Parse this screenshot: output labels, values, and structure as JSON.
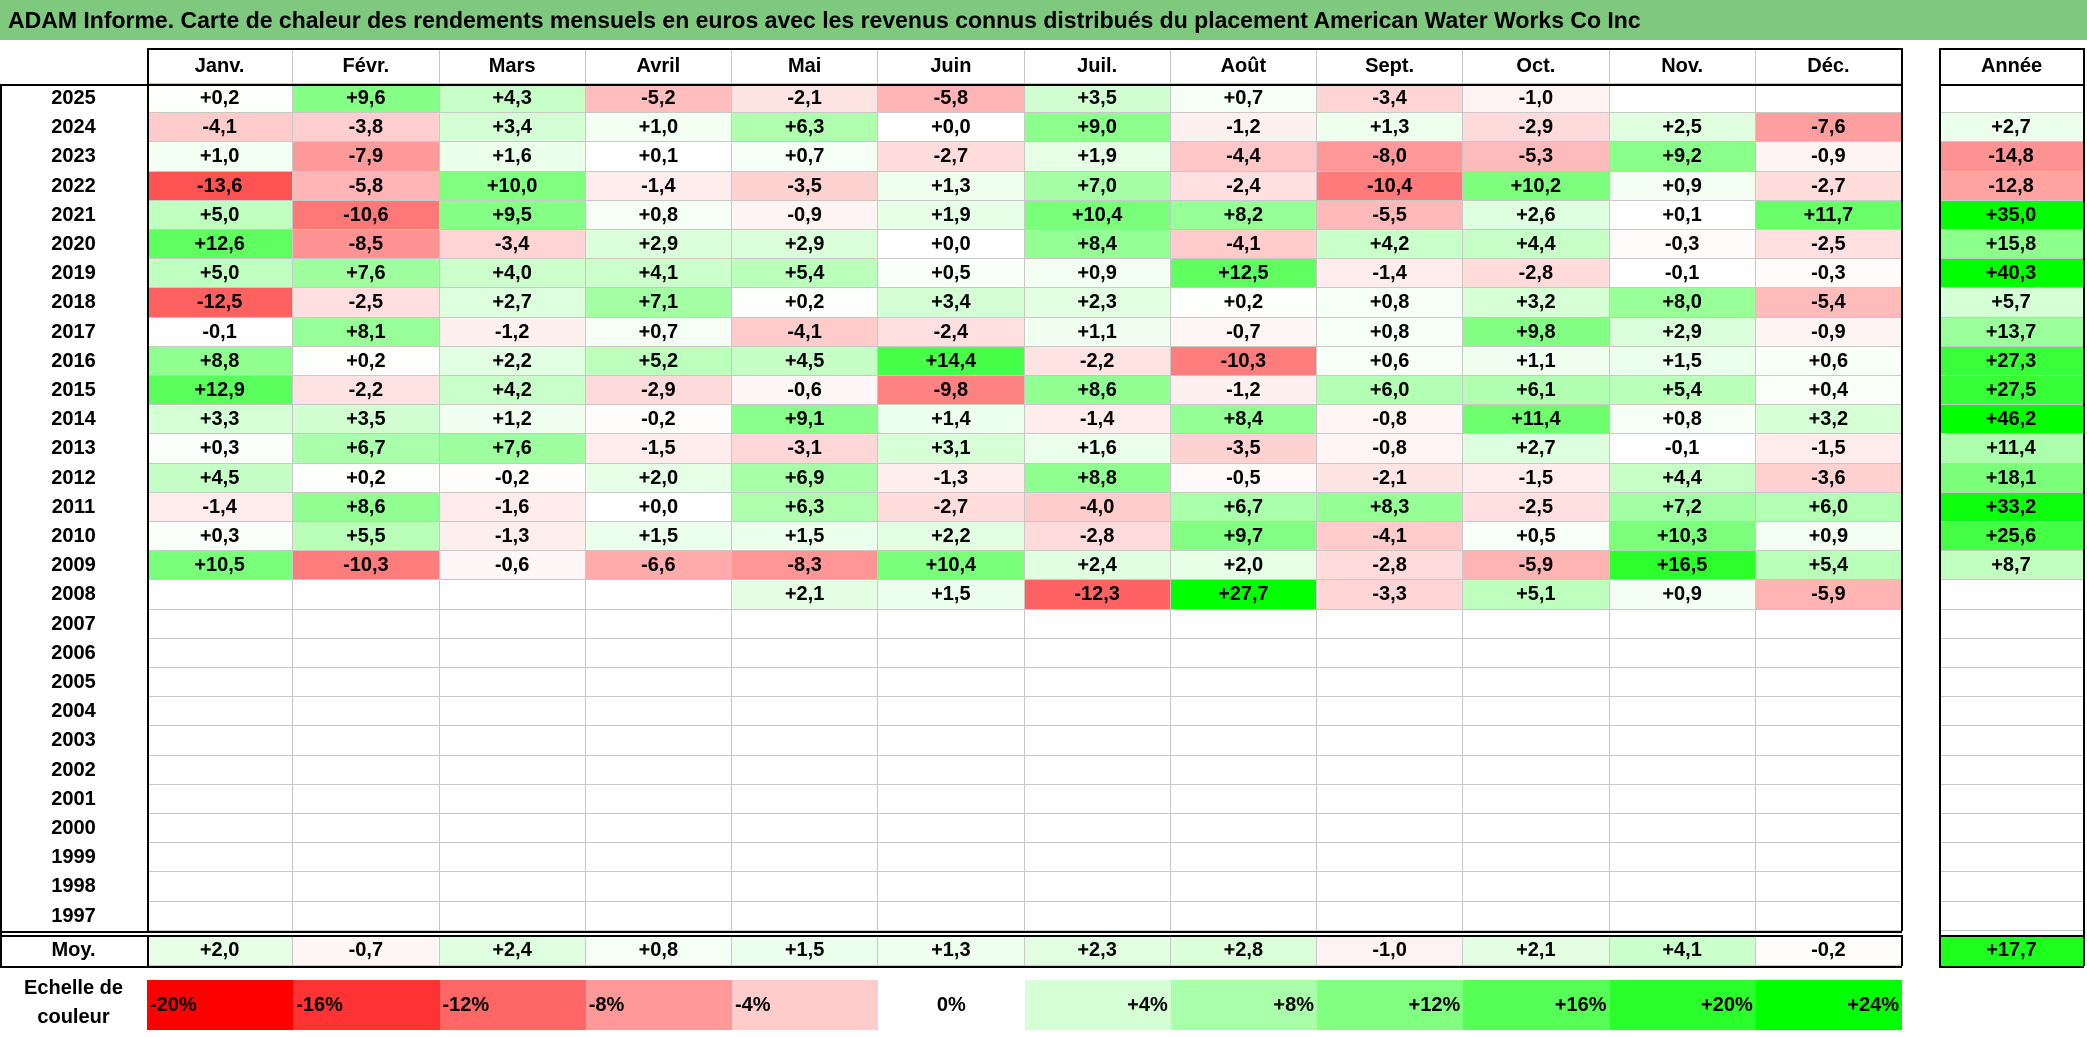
{
  "title": "ADAM Informe. Carte de chaleur des rendements mensuels en euros avec les revenus connus distribués du placement American Water Works Co Inc",
  "chart_data": {
    "type": "heatmap",
    "title": "ADAM Informe. Carte de chaleur des rendements mensuels en euros avec les revenus connus distribués du placement American Water Works Co Inc",
    "months": [
      "Janv.",
      "Févr.",
      "Mars",
      "Avril",
      "Mai",
      "Juin",
      "Juil.",
      "Août",
      "Sept.",
      "Oct.",
      "Nov.",
      "Déc."
    ],
    "year_header": "Année",
    "avg_label": "Moy.",
    "rows": [
      {
        "year": "2025",
        "values": [
          "+0,2",
          "+9,6",
          "+4,3",
          "-5,2",
          "-2,1",
          "-5,8",
          "+3,5",
          "+0,7",
          "-3,4",
          "-1,0",
          "",
          ""
        ],
        "annual": ""
      },
      {
        "year": "2024",
        "values": [
          "-4,1",
          "-3,8",
          "+3,4",
          "+1,0",
          "+6,3",
          "+0,0",
          "+9,0",
          "-1,2",
          "+1,3",
          "-2,9",
          "+2,5",
          "-7,6"
        ],
        "annual": "+2,7"
      },
      {
        "year": "2023",
        "values": [
          "+1,0",
          "-7,9",
          "+1,6",
          "+0,1",
          "+0,7",
          "-2,7",
          "+1,9",
          "-4,4",
          "-8,0",
          "-5,3",
          "+9,2",
          "-0,9"
        ],
        "annual": "-14,8"
      },
      {
        "year": "2022",
        "values": [
          "-13,6",
          "-5,8",
          "+10,0",
          "-1,4",
          "-3,5",
          "+1,3",
          "+7,0",
          "-2,4",
          "-10,4",
          "+10,2",
          "+0,9",
          "-2,7"
        ],
        "annual": "-12,8"
      },
      {
        "year": "2021",
        "values": [
          "+5,0",
          "-10,6",
          "+9,5",
          "+0,8",
          "-0,9",
          "+1,9",
          "+10,4",
          "+8,2",
          "-5,5",
          "+2,6",
          "+0,1",
          "+11,7"
        ],
        "annual": "+35,0"
      },
      {
        "year": "2020",
        "values": [
          "+12,6",
          "-8,5",
          "-3,4",
          "+2,9",
          "+2,9",
          "+0,0",
          "+8,4",
          "-4,1",
          "+4,2",
          "+4,4",
          "-0,3",
          "-2,5"
        ],
        "annual": "+15,8"
      },
      {
        "year": "2019",
        "values": [
          "+5,0",
          "+7,6",
          "+4,0",
          "+4,1",
          "+5,4",
          "+0,5",
          "+0,9",
          "+12,5",
          "-1,4",
          "-2,8",
          "-0,1",
          "-0,3"
        ],
        "annual": "+40,3"
      },
      {
        "year": "2018",
        "values": [
          "-12,5",
          "-2,5",
          "+2,7",
          "+7,1",
          "+0,2",
          "+3,4",
          "+2,3",
          "+0,2",
          "+0,8",
          "+3,2",
          "+8,0",
          "-5,4"
        ],
        "annual": "+5,7"
      },
      {
        "year": "2017",
        "values": [
          "-0,1",
          "+8,1",
          "-1,2",
          "+0,7",
          "-4,1",
          "-2,4",
          "+1,1",
          "-0,7",
          "+0,8",
          "+9,8",
          "+2,9",
          "-0,9"
        ],
        "annual": "+13,7"
      },
      {
        "year": "2016",
        "values": [
          "+8,8",
          "+0,2",
          "+2,2",
          "+5,2",
          "+4,5",
          "+14,4",
          "-2,2",
          "-10,3",
          "+0,6",
          "+1,1",
          "+1,5",
          "+0,6"
        ],
        "annual": "+27,3"
      },
      {
        "year": "2015",
        "values": [
          "+12,9",
          "-2,2",
          "+4,2",
          "-2,9",
          "-0,6",
          "-9,8",
          "+8,6",
          "-1,2",
          "+6,0",
          "+6,1",
          "+5,4",
          "+0,4"
        ],
        "annual": "+27,5"
      },
      {
        "year": "2014",
        "values": [
          "+3,3",
          "+3,5",
          "+1,2",
          "-0,2",
          "+9,1",
          "+1,4",
          "-1,4",
          "+8,4",
          "-0,8",
          "+11,4",
          "+0,8",
          "+3,2"
        ],
        "annual": "+46,2"
      },
      {
        "year": "2013",
        "values": [
          "+0,3",
          "+6,7",
          "+7,6",
          "-1,5",
          "-3,1",
          "+3,1",
          "+1,6",
          "-3,5",
          "-0,8",
          "+2,7",
          "-0,1",
          "-1,5"
        ],
        "annual": "+11,4"
      },
      {
        "year": "2012",
        "values": [
          "+4,5",
          "+0,2",
          "-0,2",
          "+2,0",
          "+6,9",
          "-1,3",
          "+8,8",
          "-0,5",
          "-2,1",
          "-1,5",
          "+4,4",
          "-3,6"
        ],
        "annual": "+18,1"
      },
      {
        "year": "2011",
        "values": [
          "-1,4",
          "+8,6",
          "-1,6",
          "+0,0",
          "+6,3",
          "-2,7",
          "-4,0",
          "+6,7",
          "+8,3",
          "-2,5",
          "+7,2",
          "+6,0"
        ],
        "annual": "+33,2"
      },
      {
        "year": "2010",
        "values": [
          "+0,3",
          "+5,5",
          "-1,3",
          "+1,5",
          "+1,5",
          "+2,2",
          "-2,8",
          "+9,7",
          "-4,1",
          "+0,5",
          "+10,3",
          "+0,9"
        ],
        "annual": "+25,6"
      },
      {
        "year": "2009",
        "values": [
          "+10,5",
          "-10,3",
          "-0,6",
          "-6,6",
          "-8,3",
          "+10,4",
          "+2,4",
          "+2,0",
          "-2,8",
          "-5,9",
          "+16,5",
          "+5,4"
        ],
        "annual": "+8,7"
      },
      {
        "year": "2008",
        "values": [
          "",
          "",
          "",
          "",
          "+2,1",
          "+1,5",
          "-12,3",
          "+27,7",
          "-3,3",
          "+5,1",
          "+0,9",
          "-5,9"
        ],
        "annual": ""
      },
      {
        "year": "2007",
        "values": [
          "",
          "",
          "",
          "",
          "",
          "",
          "",
          "",
          "",
          "",
          "",
          ""
        ],
        "annual": ""
      },
      {
        "year": "2006",
        "values": [
          "",
          "",
          "",
          "",
          "",
          "",
          "",
          "",
          "",
          "",
          "",
          ""
        ],
        "annual": ""
      },
      {
        "year": "2005",
        "values": [
          "",
          "",
          "",
          "",
          "",
          "",
          "",
          "",
          "",
          "",
          "",
          ""
        ],
        "annual": ""
      },
      {
        "year": "2004",
        "values": [
          "",
          "",
          "",
          "",
          "",
          "",
          "",
          "",
          "",
          "",
          "",
          ""
        ],
        "annual": ""
      },
      {
        "year": "2003",
        "values": [
          "",
          "",
          "",
          "",
          "",
          "",
          "",
          "",
          "",
          "",
          "",
          ""
        ],
        "annual": ""
      },
      {
        "year": "2002",
        "values": [
          "",
          "",
          "",
          "",
          "",
          "",
          "",
          "",
          "",
          "",
          "",
          ""
        ],
        "annual": ""
      },
      {
        "year": "2001",
        "values": [
          "",
          "",
          "",
          "",
          "",
          "",
          "",
          "",
          "",
          "",
          "",
          ""
        ],
        "annual": ""
      },
      {
        "year": "2000",
        "values": [
          "",
          "",
          "",
          "",
          "",
          "",
          "",
          "",
          "",
          "",
          "",
          ""
        ],
        "annual": ""
      },
      {
        "year": "1999",
        "values": [
          "",
          "",
          "",
          "",
          "",
          "",
          "",
          "",
          "",
          "",
          "",
          ""
        ],
        "annual": ""
      },
      {
        "year": "1998",
        "values": [
          "",
          "",
          "",
          "",
          "",
          "",
          "",
          "",
          "",
          "",
          "",
          ""
        ],
        "annual": ""
      },
      {
        "year": "1997",
        "values": [
          "",
          "",
          "",
          "",
          "",
          "",
          "",
          "",
          "",
          "",
          "",
          ""
        ],
        "annual": ""
      }
    ],
    "averages": {
      "values": [
        "+2,0",
        "-0,7",
        "+2,4",
        "+0,8",
        "+1,5",
        "+1,3",
        "+2,3",
        "+2,8",
        "-1,0",
        "+2,1",
        "+4,1",
        "-0,2"
      ],
      "annual": "+17,7"
    },
    "scale": {
      "label": [
        "Echelle de",
        "couleur"
      ],
      "items": [
        {
          "label": "-20%",
          "color": "#ff0000"
        },
        {
          "label": "-16%",
          "color": "#ff3333"
        },
        {
          "label": "-12%",
          "color": "#ff6666"
        },
        {
          "label": "-8%",
          "color": "#ff9999"
        },
        {
          "label": "-4%",
          "color": "#ffcccc"
        },
        {
          "label": "0%",
          "color": "#ffffff"
        },
        {
          "label": "+4%",
          "color": "#d5ffd5"
        },
        {
          "label": "+8%",
          "color": "#aaffaa"
        },
        {
          "label": "+12%",
          "color": "#80ff80"
        },
        {
          "label": "+16%",
          "color": "#55ff55"
        },
        {
          "label": "+20%",
          "color": "#2bff2b"
        },
        {
          "label": "+24%",
          "color": "#00ff00"
        }
      ]
    },
    "colors": {
      "title_bar": "#7fc97f",
      "negative_max": "#ff0000",
      "positive_max": "#00ff00",
      "neutral": "#ffffff"
    }
  }
}
